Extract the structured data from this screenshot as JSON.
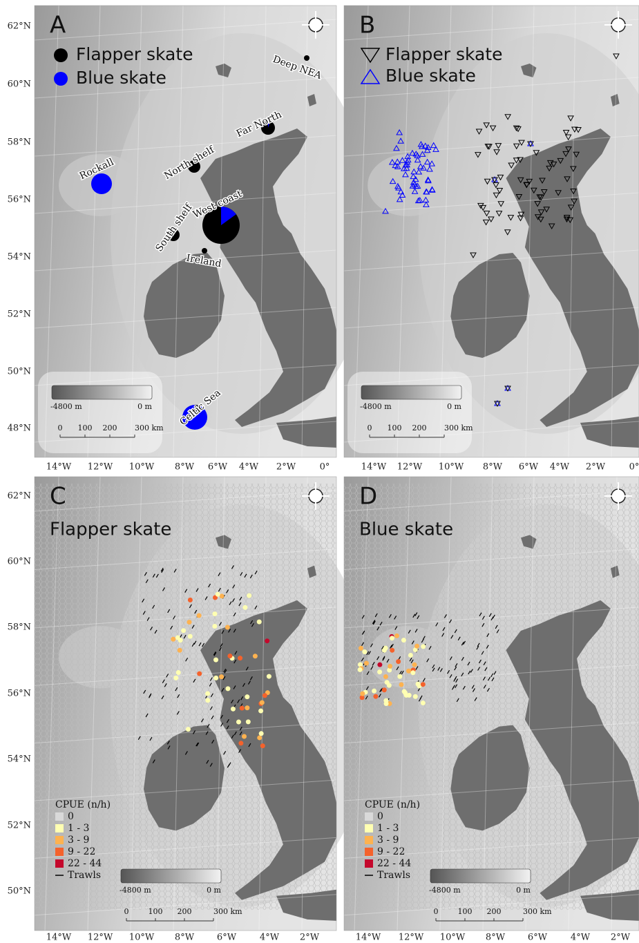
{
  "lat_labels_top": [
    "62°N",
    "60°N",
    "58°N",
    "56°N",
    "54°N",
    "52°N",
    "50°N",
    "48°N"
  ],
  "lon_labels_top_left": [
    "14°W",
    "12°W",
    "10°W",
    "8°W",
    "6°W",
    "4°W",
    "2°W",
    "0°"
  ],
  "lon_labels_top_right": [
    "14°W",
    "12°W",
    "10°W",
    "8°W",
    "6°W",
    "4°W",
    "2°W",
    "0°"
  ],
  "lat_labels_bottom": [
    "62°N",
    "60°N",
    "58°N",
    "56°N",
    "54°N",
    "52°N",
    "50°N"
  ],
  "lon_labels_bottom_left": [
    "14°W",
    "12°W",
    "10°W",
    "8°W",
    "6°W",
    "4°W",
    "2°W"
  ],
  "lon_labels_bottom_right": [
    "14°W",
    "12°W",
    "10°W",
    "8°W",
    "6°W",
    "4°W",
    "2°W"
  ],
  "panels": [
    {
      "label": "A",
      "legend": [
        "Flapper skate",
        "Blue skate"
      ],
      "regions": [
        "Deep NEA",
        "Far North",
        "North shelf",
        "Rockall",
        "West coast",
        "South shelf",
        "Ireland",
        "Celtic Sea"
      ],
      "depth_scale": [
        "-4800 m",
        "0 m"
      ],
      "distance_scale": [
        "0",
        "100",
        "200",
        "300 km"
      ]
    },
    {
      "label": "B",
      "legend": [
        "Flapper skate",
        "Blue skate"
      ],
      "depth_scale": [
        "-4800 m",
        "0 m"
      ],
      "distance_scale": [
        "0",
        "100",
        "200",
        "300 km"
      ]
    },
    {
      "label": "C",
      "title": "Flapper skate",
      "cpue_title": "CPUE (n/h)",
      "cpue_items": [
        "0",
        "1 - 3",
        "3 - 9",
        "9 - 22",
        "22 - 44",
        "Trawls"
      ],
      "depth_scale": [
        "-4800 m",
        "0 m"
      ],
      "distance_scale": [
        "0",
        "100",
        "200",
        "300 km"
      ]
    },
    {
      "label": "D",
      "title": "Blue skate",
      "cpue_title": "CPUE (n/h)",
      "cpue_items": [
        "0",
        "1 - 3",
        "3 - 9",
        "9 - 22",
        "22 - 44",
        "Trawls"
      ],
      "depth_scale": [
        "-4800 m",
        "0 m"
      ],
      "distance_scale": [
        "0",
        "100",
        "200",
        "300 km"
      ]
    }
  ]
}
